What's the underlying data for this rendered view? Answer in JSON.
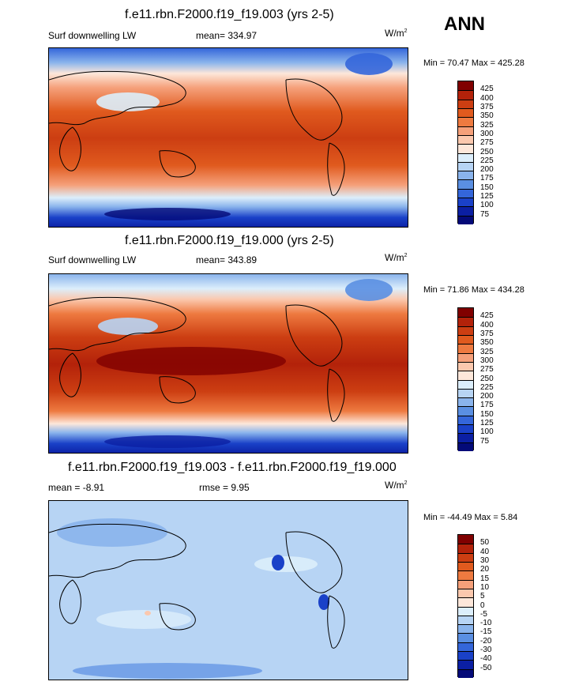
{
  "season_label": "ANN",
  "panels": [
    {
      "title": "f.e11.rbn.F2000.f19_f19.003 (yrs 2-5)",
      "left_label": "Surf downwelling LW",
      "center_label": "mean= 334.97",
      "units_base": "W/m",
      "units_exp": "2",
      "minmax": "Min =  70.47 Max = 425.28",
      "levels": [
        "425",
        "400",
        "375",
        "350",
        "325",
        "300",
        "275",
        "250",
        "225",
        "200",
        "175",
        "150",
        "125",
        "100",
        "75"
      ],
      "colors": [
        "#800000",
        "#b3220a",
        "#cc3e12",
        "#e05a1e",
        "#ee7a40",
        "#f5a07a",
        "#fbc8ae",
        "#fde7da",
        "#dceefb",
        "#b7d4f4",
        "#8ab4ec",
        "#5a8fe2",
        "#3466da",
        "#1a41c8",
        "#0b1fa3",
        "#040a78"
      ]
    },
    {
      "title": "f.e11.rbn.F2000.f19_f19.000 (yrs 2-5)",
      "left_label": "Surf downwelling LW",
      "center_label": "mean= 343.89",
      "units_base": "W/m",
      "units_exp": "2",
      "minmax": "Min =  71.86 Max = 434.28",
      "levels": [
        "425",
        "400",
        "375",
        "350",
        "325",
        "300",
        "275",
        "250",
        "225",
        "200",
        "175",
        "150",
        "125",
        "100",
        "75"
      ],
      "colors": [
        "#800000",
        "#b3220a",
        "#cc3e12",
        "#e05a1e",
        "#ee7a40",
        "#f5a07a",
        "#fbc8ae",
        "#fde7da",
        "#dceefb",
        "#b7d4f4",
        "#8ab4ec",
        "#5a8fe2",
        "#3466da",
        "#1a41c8",
        "#0b1fa3",
        "#040a78"
      ]
    },
    {
      "title": "f.e11.rbn.F2000.f19_f19.003 - f.e11.rbn.F2000.f19_f19.000",
      "left_label": "mean =  -8.91",
      "center_label": "rmse =   9.95",
      "units_base": "W/m",
      "units_exp": "2",
      "minmax": "Min = -44.49 Max =   5.84",
      "levels": [
        "50",
        "40",
        "30",
        "20",
        "15",
        "10",
        "5",
        "0",
        "-5",
        "-10",
        "-15",
        "-20",
        "-30",
        "-40",
        "-50"
      ],
      "colors": [
        "#800000",
        "#b3220a",
        "#cc3e12",
        "#e05a1e",
        "#ee7a40",
        "#f5a07a",
        "#fbc8ae",
        "#fde7da",
        "#dceefb",
        "#b7d4f4",
        "#8ab4ec",
        "#5a8fe2",
        "#3466da",
        "#1a41c8",
        "#0b1fa3",
        "#040a78"
      ]
    }
  ]
}
